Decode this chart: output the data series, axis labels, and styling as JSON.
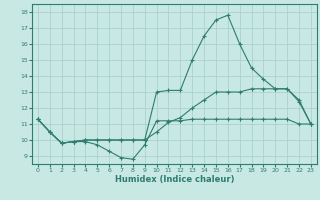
{
  "xlabel": "Humidex (Indice chaleur)",
  "xlim": [
    -0.5,
    23.5
  ],
  "ylim": [
    8.5,
    18.5
  ],
  "yticks": [
    9,
    10,
    11,
    12,
    13,
    14,
    15,
    16,
    17,
    18
  ],
  "xticks": [
    0,
    1,
    2,
    3,
    4,
    5,
    6,
    7,
    8,
    9,
    10,
    11,
    12,
    13,
    14,
    15,
    16,
    17,
    18,
    19,
    20,
    21,
    22,
    23
  ],
  "bg_color": "#c8e8e4",
  "grid_color": "#a8cccc",
  "line_color": "#2e7d6e",
  "line1_y": [
    11.3,
    10.5,
    9.8,
    9.9,
    9.9,
    9.7,
    9.3,
    8.9,
    8.8,
    9.7,
    11.2,
    11.2,
    11.2,
    11.3,
    11.3,
    11.3,
    11.3,
    11.3,
    11.3,
    11.3,
    11.3,
    11.3,
    11.0,
    11.0
  ],
  "line2_y": [
    11.3,
    10.5,
    9.8,
    9.9,
    10.0,
    10.0,
    10.0,
    10.0,
    10.0,
    10.0,
    10.5,
    11.1,
    11.4,
    12.0,
    12.5,
    13.0,
    13.0,
    13.0,
    13.2,
    13.2,
    13.2,
    13.2,
    12.5,
    11.0
  ],
  "line3_y": [
    11.3,
    10.5,
    9.8,
    9.9,
    10.0,
    10.0,
    10.0,
    10.0,
    10.0,
    10.0,
    13.0,
    13.1,
    13.1,
    15.0,
    16.5,
    17.5,
    17.8,
    16.0,
    14.5,
    13.8,
    13.2,
    13.2,
    12.4,
    11.0
  ]
}
